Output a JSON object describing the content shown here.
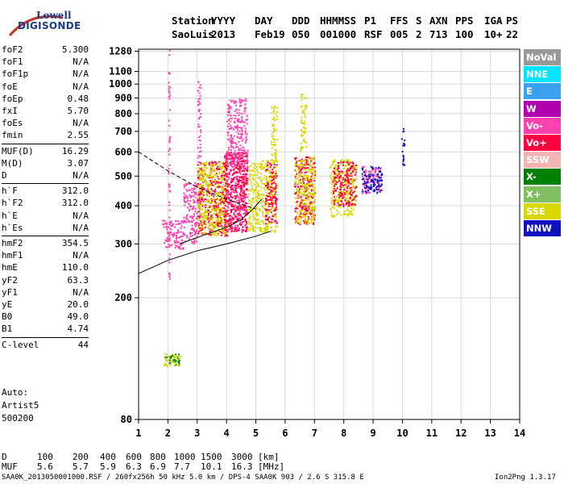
{
  "logo": {
    "line1": "Lowell",
    "line2": "DIGISONDE"
  },
  "header": {
    "labels": [
      "Station",
      "YYYY",
      "DAY",
      "DDD",
      "HHMMSS",
      "P1",
      "FFS",
      "S",
      "AXN",
      "PPS",
      "IGA",
      "PS"
    ],
    "values": [
      "SaoLuis",
      "2013",
      "Feb19",
      "050",
      "001000",
      "RSF",
      "005",
      "2",
      "713",
      "100",
      "10+",
      "22"
    ]
  },
  "params": {
    "group1": [
      {
        "name": "foF2",
        "value": "5.300"
      },
      {
        "name": "foF1",
        "value": "N/A"
      },
      {
        "name": "foF1p",
        "value": "N/A"
      },
      {
        "name": "foE",
        "value": "N/A"
      },
      {
        "name": "foEp",
        "value": "0.48"
      },
      {
        "name": "fxI",
        "value": "5.70"
      },
      {
        "name": "foEs",
        "value": "N/A"
      },
      {
        "name": "fmin",
        "value": "2.55"
      }
    ],
    "group2": [
      {
        "name": "MUF(D)",
        "value": "16.29"
      },
      {
        "name": "M(D)",
        "value": "3.07"
      },
      {
        "name": "D",
        "value": "N/A"
      }
    ],
    "group3": [
      {
        "name": "h`F",
        "value": "312.0"
      },
      {
        "name": "h`F2",
        "value": "312.0"
      },
      {
        "name": "h`E",
        "value": "N/A"
      },
      {
        "name": "h`Es",
        "value": "N/A"
      }
    ],
    "group4": [
      {
        "name": "hmF2",
        "value": "354.5"
      },
      {
        "name": "hmF1",
        "value": "N/A"
      },
      {
        "name": "hmE",
        "value": "110.0"
      },
      {
        "name": "yF2",
        "value": "63.3"
      },
      {
        "name": "yF1",
        "value": "N/A"
      },
      {
        "name": "yE",
        "value": "20.0"
      },
      {
        "name": "B0",
        "value": "49.0"
      },
      {
        "name": "B1",
        "value": "4.74"
      }
    ],
    "group5": [
      {
        "name": "C-level",
        "value": "44"
      }
    ]
  },
  "auto": {
    "line1": "Auto:",
    "line2": "Artist5",
    "line3": "500200"
  },
  "legend": [
    {
      "label": "NoVal",
      "color": "#999999"
    },
    {
      "label": "NNE",
      "color": "#00e5ff"
    },
    {
      "label": "E",
      "color": "#3aa0f0"
    },
    {
      "label": "W",
      "color": "#b000b0"
    },
    {
      "label": "Vo-",
      "color": "#ff40b0"
    },
    {
      "label": "Vo+",
      "color": "#ff0040"
    },
    {
      "label": "SSW",
      "color": "#f4b4b4"
    },
    {
      "label": "X-",
      "color": "#008000"
    },
    {
      "label": "X+",
      "color": "#80c060"
    },
    {
      "label": "SSE",
      "color": "#d8d800"
    },
    {
      "label": "NNW",
      "color": "#1010c0"
    }
  ],
  "chart_data": {
    "type": "scatter",
    "title": "",
    "xlabel": "",
    "ylabel": "",
    "xlim": [
      1,
      14
    ],
    "ylim": [
      80,
      1300
    ],
    "x_ticks": [
      1,
      2,
      3,
      4,
      5,
      6,
      7,
      8,
      9,
      10,
      11,
      12,
      13,
      14
    ],
    "y_ticks": [
      80,
      200,
      300,
      400,
      500,
      600,
      700,
      800,
      900,
      1000,
      1100,
      1280
    ],
    "y_scale": "log",
    "grid": true,
    "clusters": [
      {
        "x": [
          1.85,
          2.4
        ],
        "y": [
          120,
          132
        ],
        "color": "#008000"
      },
      {
        "x": [
          1.85,
          2.4
        ],
        "y": [
          120,
          132
        ],
        "color": "#d8d800"
      },
      {
        "x": [
          1.8,
          2.5
        ],
        "y": [
          290,
          360
        ],
        "color": "#ff40b0"
      },
      {
        "x": [
          2.5,
          3.0
        ],
        "y": [
          300,
          480
        ],
        "color": "#ff40b0"
      },
      {
        "x": [
          3.0,
          4.0
        ],
        "y": [
          320,
          560
        ],
        "color": "#ff0040"
      },
      {
        "x": [
          3.0,
          4.0
        ],
        "y": [
          320,
          560
        ],
        "color": "#d8d800"
      },
      {
        "x": [
          3.9,
          4.7
        ],
        "y": [
          330,
          600
        ],
        "color": "#ff40b0"
      },
      {
        "x": [
          3.9,
          4.7
        ],
        "y": [
          330,
          600
        ],
        "color": "#ff0040"
      },
      {
        "x": [
          4.7,
          5.2
        ],
        "y": [
          330,
          560
        ],
        "color": "#d8d800"
      },
      {
        "x": [
          5.2,
          5.7
        ],
        "y": [
          330,
          570
        ],
        "color": "#d8d800"
      },
      {
        "x": [
          5.3,
          5.7
        ],
        "y": [
          350,
          560
        ],
        "color": "#ff0040"
      },
      {
        "x": [
          6.3,
          7.0
        ],
        "y": [
          350,
          580
        ],
        "color": "#ff0040"
      },
      {
        "x": [
          6.3,
          7.0
        ],
        "y": [
          350,
          580
        ],
        "color": "#d8d800"
      },
      {
        "x": [
          7.5,
          8.4
        ],
        "y": [
          370,
          570
        ],
        "color": "#d8d800"
      },
      {
        "x": [
          7.6,
          8.4
        ],
        "y": [
          400,
          560
        ],
        "color": "#ff0040"
      },
      {
        "x": [
          8.6,
          9.3
        ],
        "y": [
          440,
          540
        ],
        "color": "#ff40b0"
      },
      {
        "x": [
          8.6,
          9.3
        ],
        "y": [
          440,
          540
        ],
        "color": "#1010c0"
      },
      {
        "x": [
          3.0,
          3.1
        ],
        "y": [
          550,
          1050
        ],
        "color": "#ff40b0"
      },
      {
        "x": [
          4.0,
          4.7
        ],
        "y": [
          550,
          900
        ],
        "color": "#ff40b0"
      },
      {
        "x": [
          5.5,
          5.7
        ],
        "y": [
          560,
          850
        ],
        "color": "#d8d800"
      },
      {
        "x": [
          6.5,
          6.7
        ],
        "y": [
          600,
          940
        ],
        "color": "#d8d800"
      },
      {
        "x": [
          2.0,
          2.05
        ],
        "y": [
          230,
          1300
        ],
        "color": "#ff40b0"
      },
      {
        "x": [
          9.95,
          10.05
        ],
        "y": [
          540,
          720
        ],
        "color": "#1010c0"
      }
    ],
    "traces": [
      {
        "name": "extraordinary",
        "style": "solid",
        "points": [
          [
            1.0,
            240
          ],
          [
            2.0,
            265
          ],
          [
            3.0,
            285
          ],
          [
            4.0,
            300
          ],
          [
            5.0,
            318
          ],
          [
            5.5,
            330
          ]
        ]
      },
      {
        "name": "ordinary",
        "style": "solid",
        "points": [
          [
            2.4,
            300
          ],
          [
            3.2,
            320
          ],
          [
            4.0,
            340
          ],
          [
            4.5,
            360
          ],
          [
            4.9,
            390
          ],
          [
            5.2,
            420
          ]
        ]
      },
      {
        "name": "profile",
        "style": "dashed",
        "points": [
          [
            1.0,
            600
          ],
          [
            2.0,
            520
          ],
          [
            3.0,
            460
          ],
          [
            4.0,
            420
          ],
          [
            5.0,
            390
          ]
        ]
      }
    ]
  },
  "d_muf": {
    "d_label": "D",
    "d_values": [
      "100",
      "200",
      "400",
      "600",
      "800",
      "1000",
      "1500",
      "3000"
    ],
    "d_unit": "[km]",
    "muf_label": "MUF",
    "muf_values": [
      "5.6",
      "5.7",
      "5.9",
      "6.3",
      "6.9",
      "7.7",
      "10.1",
      "16.3"
    ],
    "muf_unit": "[MHz]"
  },
  "footer": {
    "left": "SAA0K_2013050001000.RSF / 260fx256h 50 kHz 5.0 km / DPS-4 SAA0K 903 / 2.6 S 315.8 E",
    "right": "Ion2Png 1.3.17"
  }
}
